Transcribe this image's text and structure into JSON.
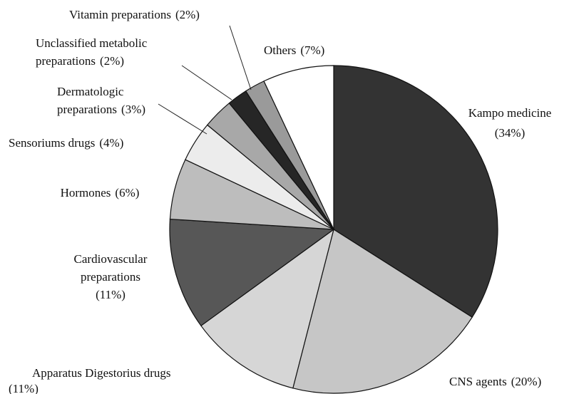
{
  "chart_data": {
    "type": "pie",
    "categories": [
      "Kampo medicine",
      "CNS agents",
      "Apparatus Digestorius drugs",
      "Cardiovascular preparations",
      "Hormones",
      "Sensoriums drugs",
      "Dermatologic preparations",
      "Unclassified metabolic preparations",
      "Vitamin preparations",
      "Others"
    ],
    "values": [
      34,
      20,
      11,
      11,
      6,
      4,
      3,
      2,
      2,
      7
    ],
    "value_labels": [
      "(34%)",
      "(20%)",
      "(11%)",
      "(11%)",
      "(6%)",
      "(4%)",
      "(3%)",
      "(2%)",
      "(2%)",
      "(7%)"
    ],
    "colors": [
      "#333333",
      "#c6c6c6",
      "#d6d6d6",
      "#575757",
      "#bdbdbd",
      "#ececec",
      "#a8a8a8",
      "#262626",
      "#9a9a9a",
      "#ffffff"
    ]
  }
}
